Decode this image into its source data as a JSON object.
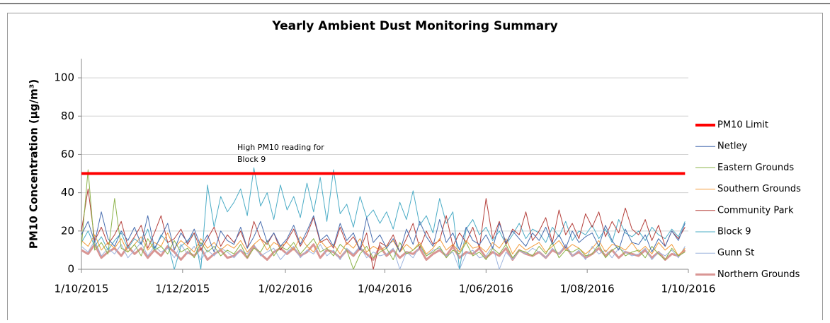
{
  "chart_data": {
    "type": "line",
    "title": "Yearly Ambient Dust Monitoring Summary",
    "y_label": "PM10 Concentration  (µg/m³)",
    "annotation": [
      "High PM10 reading for",
      "Block 9"
    ],
    "x": [
      "1/10/2015",
      "5/10/2015",
      "9/10/2015",
      "13/10/2015",
      "17/10/2015",
      "21/10/2015",
      "25/10/2015",
      "29/10/2015",
      "2/11/2015",
      "6/11/2015",
      "10/11/2015",
      "14/11/2015",
      "18/11/2015",
      "22/11/2015",
      "26/11/2015",
      "30/11/2015",
      "4/12/2015",
      "8/12/2015",
      "12/12/2015",
      "16/12/2015",
      "20/12/2015",
      "24/12/2015",
      "28/12/2015",
      "1/01/2016",
      "5/01/2016",
      "9/01/2016",
      "13/01/2016",
      "17/01/2016",
      "21/01/2016",
      "25/01/2016",
      "29/01/2016",
      "2/02/2016",
      "6/02/2016",
      "10/02/2016",
      "14/02/2016",
      "18/02/2016",
      "22/02/2016",
      "26/02/2016",
      "1/03/2016",
      "5/03/2016",
      "9/03/2016",
      "13/03/2016",
      "17/03/2016",
      "21/03/2016",
      "25/03/2016",
      "29/03/2016",
      "2/04/2016",
      "6/04/2016",
      "10/04/2016",
      "14/04/2016",
      "18/04/2016",
      "22/04/2016",
      "26/04/2016",
      "30/04/2016",
      "4/05/2016",
      "8/05/2016",
      "12/05/2016",
      "16/05/2016",
      "20/05/2016",
      "24/05/2016",
      "28/05/2016",
      "1/06/2016",
      "5/06/2016",
      "9/06/2016",
      "13/06/2016",
      "17/06/2016",
      "21/06/2016",
      "25/06/2016",
      "29/06/2016",
      "3/07/2016",
      "7/07/2016",
      "11/07/2016",
      "15/07/2016",
      "19/07/2016",
      "23/07/2016",
      "27/07/2016",
      "31/07/2016",
      "4/08/2016",
      "8/08/2016",
      "12/08/2016",
      "16/08/2016",
      "20/08/2016",
      "24/08/2016",
      "28/08/2016",
      "1/09/2016",
      "5/09/2016",
      "9/09/2016",
      "13/09/2016",
      "17/09/2016",
      "21/09/2016",
      "25/09/2016",
      "29/09/2016"
    ],
    "xlim": [
      "1/10/2015",
      "1/10/2016"
    ],
    "xticks": [
      "1/10/2015",
      "1/12/2015",
      "1/02/2016",
      "1/04/2016",
      "1/06/2016",
      "1/08/2016",
      "1/10/2016"
    ],
    "ylim": [
      0,
      110
    ],
    "yticks": [
      0,
      20,
      40,
      60,
      80,
      100
    ],
    "grid": true,
    "legend": "right",
    "series": [
      {
        "name": "PM10 Limit",
        "color": "#ff0000",
        "values": [
          50,
          50,
          50,
          50,
          50,
          50,
          50,
          50,
          50,
          50,
          50,
          50,
          50,
          50,
          50,
          50,
          50,
          50,
          50,
          50,
          50,
          50,
          50,
          50,
          50,
          50,
          50,
          50,
          50,
          50,
          50,
          50,
          50,
          50,
          50,
          50,
          50,
          50,
          50,
          50,
          50,
          50,
          50,
          50,
          50,
          50,
          50,
          50,
          50,
          50,
          50,
          50,
          50,
          50,
          50,
          50,
          50,
          50,
          50,
          50,
          50,
          50,
          50,
          50,
          50,
          50,
          50,
          50,
          50,
          50,
          50,
          50,
          50,
          50,
          50,
          50,
          50,
          50,
          50,
          50,
          50,
          50,
          50,
          50,
          50,
          50,
          50,
          50,
          50,
          50,
          50,
          50
        ]
      },
      {
        "name": "Netley",
        "color": "#4a6fb0",
        "values": [
          18,
          25,
          14,
          30,
          16,
          12,
          20,
          15,
          22,
          13,
          28,
          11,
          17,
          24,
          10,
          19,
          14,
          21,
          12,
          18,
          9,
          20,
          15,
          13,
          22,
          11,
          17,
          25,
          14,
          19,
          12,
          16,
          23,
          13,
          20,
          28,
          15,
          18,
          12,
          24,
          15,
          19,
          10,
          27,
          14,
          18,
          11,
          16,
          9,
          21,
          13,
          25,
          17,
          12,
          26,
          14,
          19,
          10,
          22,
          15,
          13,
          18,
          11,
          24,
          14,
          20,
          16,
          12,
          19,
          15,
          22,
          13,
          18,
          11,
          20,
          14,
          17,
          19,
          12,
          23,
          15,
          10,
          21,
          14,
          13,
          18,
          9,
          16,
          12,
          20,
          15,
          24
        ]
      },
      {
        "name": "Eastern Grounds",
        "color": "#8db34a",
        "values": [
          12,
          52,
          10,
          14,
          8,
          37,
          11,
          9,
          13,
          7,
          16,
          10,
          12,
          8,
          15,
          9,
          11,
          6,
          14,
          9,
          12,
          7,
          10,
          8,
          13,
          6,
          11,
          9,
          15,
          7,
          12,
          10,
          14,
          8,
          12,
          16,
          9,
          11,
          7,
          13,
          10,
          0,
          8,
          12,
          6,
          9,
          11,
          5,
          14,
          8,
          10,
          13,
          7,
          9,
          12,
          6,
          10,
          8,
          14,
          7,
          9,
          5,
          11,
          8,
          13,
          6,
          10,
          9,
          7,
          12,
          8,
          14,
          6,
          10,
          9,
          11,
          7,
          8,
          13,
          6,
          10,
          12,
          7,
          9,
          10,
          6,
          12,
          8,
          5,
          11,
          7,
          9
        ]
      },
      {
        "name": "Southern Grounds",
        "color": "#f39c3c",
        "values": [
          15,
          12,
          18,
          10,
          14,
          11,
          16,
          9,
          13,
          17,
          10,
          14,
          12,
          19,
          11,
          15,
          12,
          9,
          16,
          11,
          14,
          10,
          13,
          11,
          15,
          9,
          13,
          16,
          10,
          14,
          12,
          14,
          10,
          17,
          12,
          9,
          15,
          11,
          13,
          8,
          14,
          11,
          16,
          9,
          12,
          10,
          12,
          15,
          9,
          13,
          10,
          14,
          8,
          11,
          16,
          10,
          13,
          9,
          15,
          11,
          12,
          9,
          14,
          11,
          16,
          8,
          13,
          10,
          12,
          14,
          9,
          12,
          15,
          10,
          13,
          11,
          8,
          11,
          15,
          9,
          13,
          12,
          10,
          14,
          9,
          12,
          8,
          14,
          10,
          13,
          7,
          11
        ]
      },
      {
        "name": "Community Park",
        "color": "#b5403c",
        "values": [
          20,
          42,
          15,
          22,
          13,
          18,
          25,
          12,
          17,
          23,
          11,
          19,
          28,
          14,
          16,
          21,
          13,
          19,
          10,
          16,
          22,
          12,
          18,
          14,
          20,
          11,
          25,
          16,
          13,
          19,
          10,
          15,
          21,
          12,
          18,
          27,
          14,
          16,
          11,
          22,
          13,
          17,
          10,
          19,
          0,
          14,
          12,
          18,
          9,
          16,
          24,
          11,
          20,
          13,
          15,
          28,
          12,
          19,
          14,
          22,
          11,
          37,
          16,
          25,
          13,
          21,
          18,
          30,
          15,
          20,
          27,
          14,
          31,
          18,
          24,
          16,
          29,
          22,
          30,
          17,
          25,
          19,
          32,
          21,
          18,
          26,
          15,
          23,
          12,
          20,
          16,
          22
        ]
      },
      {
        "name": "Block 9",
        "color": "#4bacc6",
        "values": [
          14,
          20,
          12,
          17,
          10,
          15,
          19,
          11,
          16,
          13,
          21,
          10,
          18,
          14,
          0,
          12,
          15,
          19,
          0,
          44,
          22,
          38,
          30,
          35,
          42,
          28,
          53,
          33,
          40,
          26,
          44,
          31,
          38,
          27,
          45,
          30,
          48,
          25,
          52,
          29,
          34,
          22,
          38,
          27,
          31,
          24,
          30,
          21,
          35,
          26,
          41,
          23,
          28,
          19,
          37,
          24,
          30,
          0,
          21,
          26,
          18,
          22,
          15,
          20,
          13,
          18,
          24,
          16,
          21,
          19,
          14,
          22,
          17,
          25,
          15,
          20,
          18,
          23,
          16,
          21,
          14,
          26,
          19,
          17,
          20,
          15,
          22,
          18,
          16,
          21,
          17,
          25
        ]
      },
      {
        "name": "Gunn St",
        "color": "#9db4de",
        "values": [
          12,
          9,
          15,
          7,
          11,
          8,
          13,
          6,
          10,
          14,
          7,
          12,
          9,
          11,
          6,
          13,
          8,
          12,
          5,
          10,
          7,
          11,
          9,
          6,
          10,
          8,
          13,
          7,
          9,
          11,
          5,
          9,
          12,
          6,
          10,
          8,
          13,
          7,
          10,
          5,
          11,
          8,
          12,
          6,
          9,
          7,
          8,
          11,
          0,
          9,
          6,
          12,
          7,
          10,
          11,
          7,
          9,
          0,
          8,
          10,
          6,
          7,
          12,
          0,
          9,
          5,
          10,
          8,
          11,
          9,
          6,
          11,
          8,
          13,
          7,
          10,
          5,
          12,
          8,
          10,
          6,
          11,
          9,
          7,
          8,
          11,
          5,
          9,
          7,
          10,
          6,
          12
        ]
      },
      {
        "name": "Northern Grounds",
        "color": "#d99694",
        "values": [
          10,
          8,
          13,
          6,
          9,
          11,
          7,
          12,
          8,
          11,
          6,
          10,
          7,
          12,
          9,
          5,
          9,
          7,
          11,
          5,
          8,
          10,
          6,
          7,
          10,
          6,
          12,
          8,
          5,
          9,
          11,
          8,
          11,
          7,
          9,
          13,
          6,
          10,
          9,
          6,
          10,
          7,
          11,
          8,
          5,
          12,
          7,
          10,
          6,
          9,
          8,
          11,
          5,
          8,
          10,
          7,
          12,
          6,
          9,
          8,
          11,
          6,
          9,
          7,
          11,
          5,
          10,
          8,
          7,
          9,
          6,
          10,
          8,
          12,
          7,
          9,
          6,
          8,
          11,
          7,
          10,
          6,
          9,
          8,
          7,
          10,
          6,
          9,
          5,
          8,
          7,
          10
        ]
      }
    ]
  }
}
